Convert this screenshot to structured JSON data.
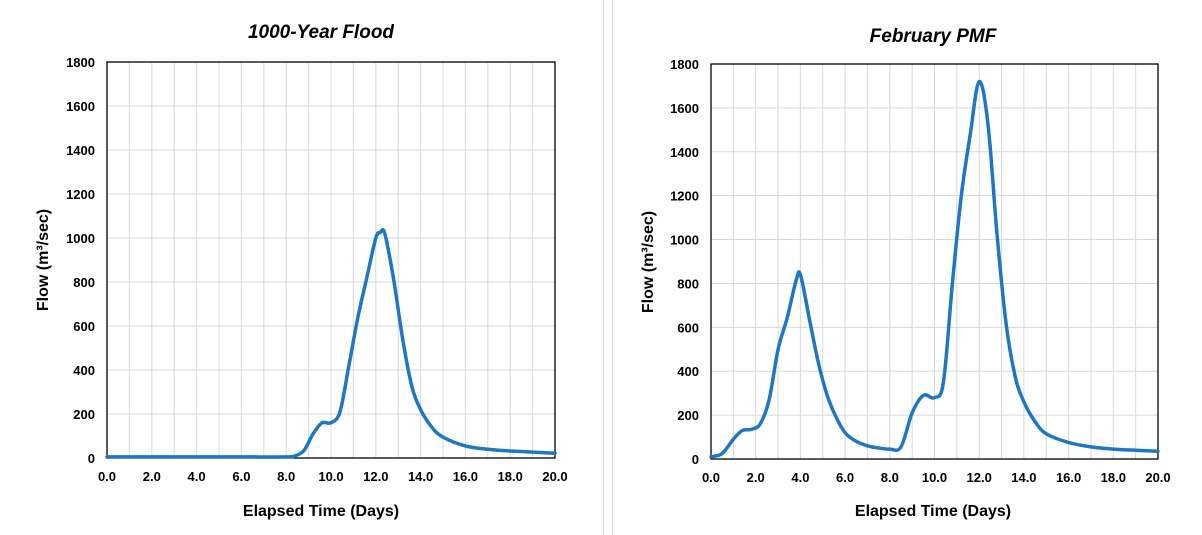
{
  "chart_data": [
    {
      "type": "line",
      "title": "1000-Year Flood",
      "xlabel": "Elapsed Time (Days)",
      "ylabel": "Flow (m³/sec)",
      "xlim": [
        0,
        20
      ],
      "ylim": [
        0,
        1800
      ],
      "xticks": [
        "0.0",
        "2.0",
        "4.0",
        "6.0",
        "8.0",
        "10.0",
        "12.0",
        "14.0",
        "16.0",
        "18.0",
        "20.0"
      ],
      "yticks": [
        "0",
        "200",
        "400",
        "600",
        "800",
        "1000",
        "1200",
        "1400",
        "1600",
        "1800"
      ],
      "grid": true,
      "color": "#1f77c4",
      "series": [
        {
          "x": [
            0,
            2,
            4,
            6,
            8,
            8.4,
            8.8,
            9.2,
            9.6,
            10.0,
            10.4,
            10.8,
            11.2,
            11.6,
            12.0,
            12.2,
            12.4,
            12.8,
            13.2,
            13.6,
            14.0,
            14.5,
            15.0,
            16.0,
            17.0,
            18.0,
            19.0,
            20.0
          ],
          "y": [
            5,
            5,
            5,
            5,
            5,
            10,
            35,
            110,
            160,
            160,
            210,
            420,
            640,
            820,
            1000,
            1025,
            1020,
            810,
            540,
            330,
            220,
            140,
            95,
            55,
            40,
            32,
            27,
            22
          ]
        }
      ]
    },
    {
      "type": "line",
      "title": "February PMF",
      "xlabel": "Elapsed Time (Days)",
      "ylabel": "Flow (m³/sec)",
      "xlim": [
        0,
        20
      ],
      "ylim": [
        0,
        1800
      ],
      "xticks": [
        "0.0",
        "2.0",
        "4.0",
        "6.0",
        "8.0",
        "10.0",
        "12.0",
        "14.0",
        "16.0",
        "18.0",
        "20.0"
      ],
      "yticks": [
        "0",
        "200",
        "400",
        "600",
        "800",
        "1000",
        "1200",
        "1400",
        "1600",
        "1800"
      ],
      "grid": true,
      "color": "#1f77c4",
      "series": [
        {
          "x": [
            0,
            0.5,
            1.0,
            1.4,
            1.8,
            2.2,
            2.6,
            3.0,
            3.4,
            3.8,
            4.0,
            4.4,
            4.8,
            5.2,
            5.6,
            6.0,
            6.5,
            7.0,
            7.5,
            8.0,
            8.5,
            9.0,
            9.5,
            10.0,
            10.4,
            10.8,
            11.2,
            11.6,
            12.0,
            12.4,
            12.8,
            13.2,
            13.6,
            14.0,
            14.5,
            15.0,
            16.0,
            17.0,
            18.0,
            19.0,
            20.0
          ],
          "y": [
            10,
            25,
            90,
            130,
            135,
            160,
            270,
            500,
            640,
            810,
            840,
            640,
            440,
            290,
            190,
            120,
            80,
            60,
            50,
            45,
            55,
            210,
            290,
            280,
            350,
            800,
            1200,
            1480,
            1720,
            1520,
            1020,
            620,
            380,
            260,
            170,
            115,
            75,
            55,
            45,
            40,
            35
          ]
        }
      ]
    }
  ]
}
